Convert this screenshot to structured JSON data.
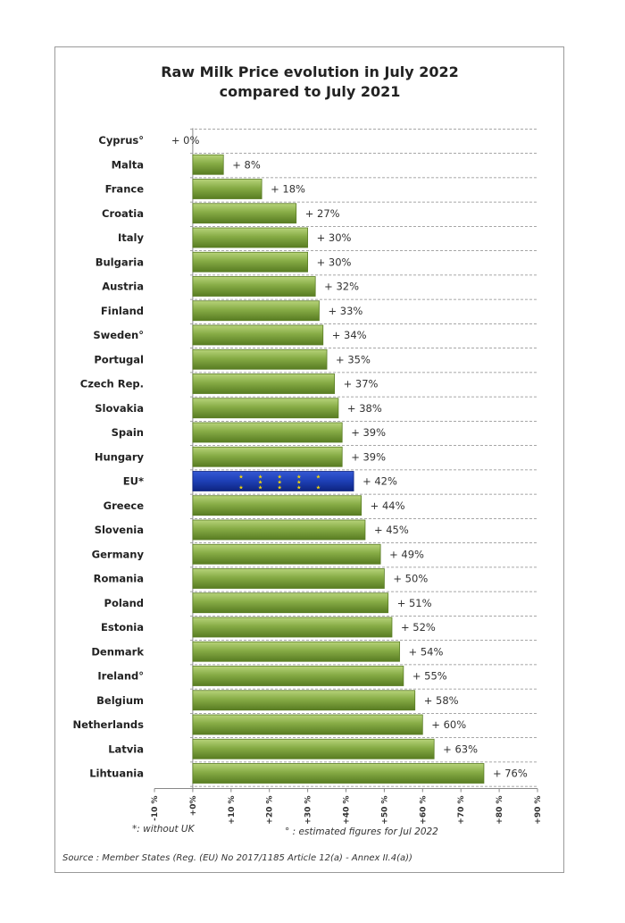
{
  "chart_data": {
    "type": "bar",
    "orientation": "horizontal",
    "title_lines": [
      "Raw Milk Price evolution in July 2022",
      "compared to July 2021"
    ],
    "categories": [
      "Cyprus°",
      "Malta",
      "France",
      "Croatia",
      "Italy",
      "Bulgaria",
      "Austria",
      "Finland",
      "Sweden°",
      "Portugal",
      "Czech Rep.",
      "Slovakia",
      "Spain",
      "Hungary",
      "EU*",
      "Greece",
      "Slovenia",
      "Germany",
      "Romania",
      "Poland",
      "Estonia",
      "Denmark",
      "Ireland°",
      "Belgium",
      "Netherlands",
      "Latvia",
      "Lihtuania"
    ],
    "values": [
      0,
      8,
      18,
      27,
      30,
      30,
      32,
      33,
      34,
      35,
      37,
      38,
      39,
      39,
      42,
      44,
      45,
      49,
      50,
      51,
      52,
      54,
      55,
      58,
      60,
      63,
      76
    ],
    "value_labels": [
      "+ 0%",
      "+ 8%",
      "+ 18%",
      "+ 27%",
      "+ 30%",
      "+ 30%",
      "+ 32%",
      "+ 33%",
      "+ 34%",
      "+ 35%",
      "+ 37%",
      "+ 38%",
      "+ 39%",
      "+ 39%",
      "+ 42%",
      "+ 44%",
      "+ 45%",
      "+ 49%",
      "+ 50%",
      "+ 51%",
      "+ 52%",
      "+ 54%",
      "+ 55%",
      "+ 58%",
      "+ 60%",
      "+ 63%",
      "+ 76%"
    ],
    "highlight_category": "EU*",
    "xlim": [
      -10,
      90
    ],
    "x_ticks": [
      -10,
      0,
      10,
      20,
      30,
      40,
      50,
      60,
      70,
      80,
      90
    ],
    "x_tick_labels": [
      "-10 %",
      "+0%",
      "+10 %",
      "+20 %",
      "+30 %",
      "+40 %",
      "+50 %",
      "+60 %",
      "+70 %",
      "+80 %",
      "+90 %"
    ],
    "grid": "dashed horizontal",
    "colors": {
      "bar": "#7ea33f",
      "bar_light": "#a9c86a",
      "bar_dark": "#5a7d24",
      "highlight": "#1d3fb5",
      "highlight_dark": "#0e2480",
      "stars": "#f5d90a"
    }
  },
  "footnotes": {
    "eu_note": "*: without UK",
    "estimated_note": "° : estimated figures for Jul 2022",
    "source": "Source : Member States (Reg. (EU) No 2017/1185 Article 12(a) - Annex II.4(a))"
  }
}
